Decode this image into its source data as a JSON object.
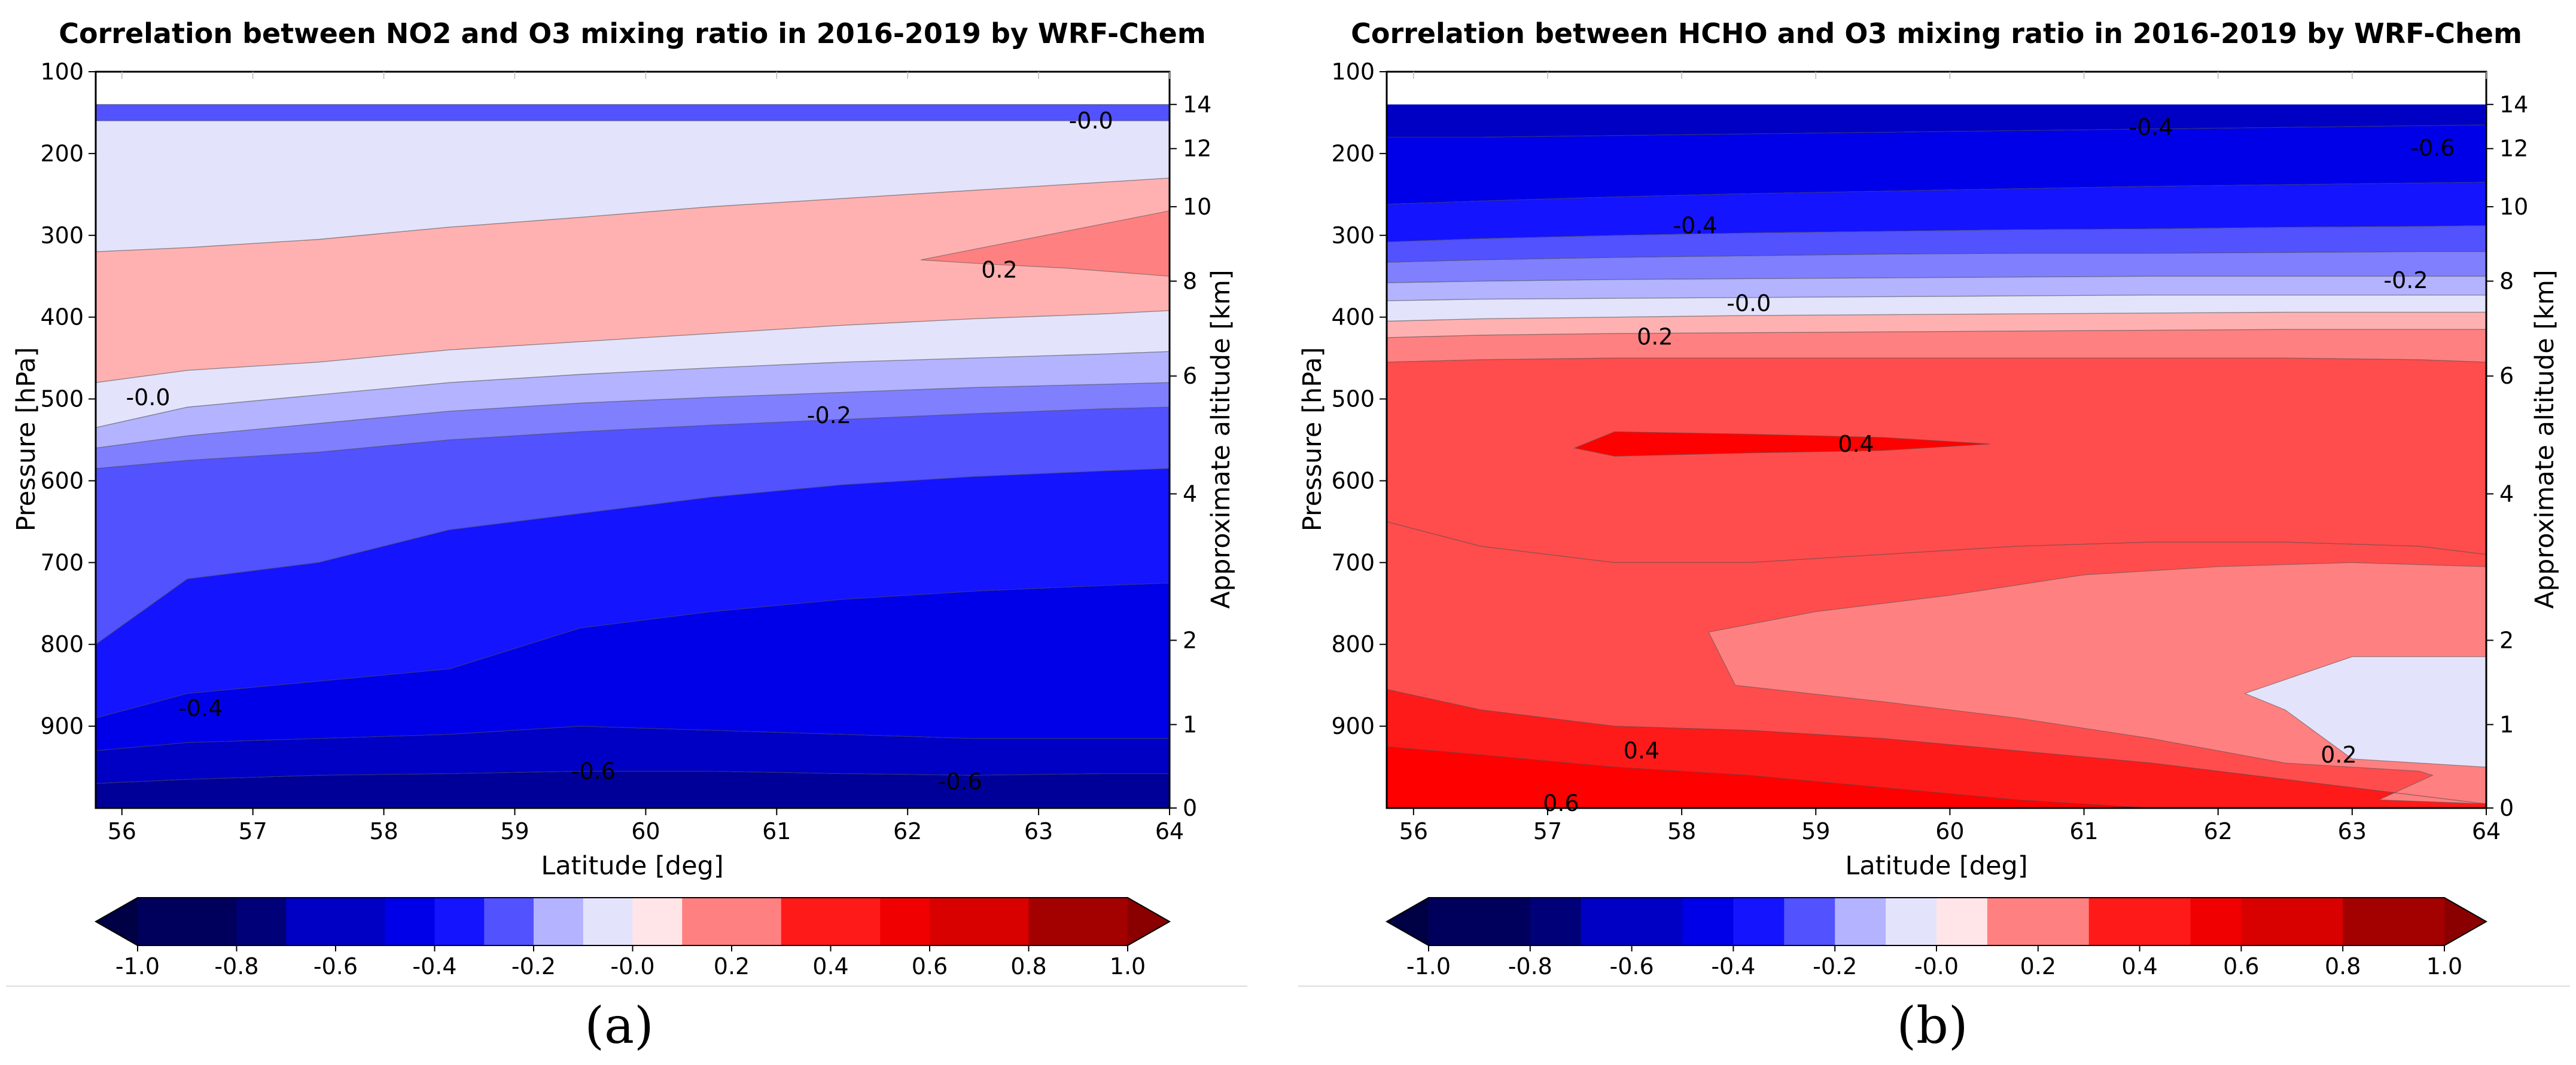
{
  "chart_data": [
    {
      "type": "contour",
      "id": "a",
      "title": "Correlation between NO2 and O3 mixing ratio in 2016-2019 by WRF-Chem",
      "xlabel": "Latitude [deg]",
      "ylabel": "Pressure [hPa]",
      "y2label": "Approximate altitude [km]",
      "xlim": [
        55.8,
        64
      ],
      "ylim": [
        1000,
        100
      ],
      "xticks": [
        56,
        57,
        58,
        59,
        60,
        61,
        62,
        63,
        64
      ],
      "yticks": [
        100,
        200,
        300,
        400,
        500,
        600,
        700,
        800,
        900
      ],
      "y2ticks": [
        {
          "label": "14",
          "pressure": 140
        },
        {
          "label": "12",
          "pressure": 194
        },
        {
          "label": "10",
          "pressure": 265
        },
        {
          "label": "8",
          "pressure": 356
        },
        {
          "label": "6",
          "pressure": 472
        },
        {
          "label": "4",
          "pressure": 616
        },
        {
          "label": "2",
          "pressure": 795
        },
        {
          "label": "1",
          "pressure": 898
        },
        {
          "label": "0",
          "pressure": 1000
        }
      ],
      "data_ptop": 140,
      "field": {
        "type": "bands",
        "x": [
          55.8,
          56.5,
          57.5,
          58.5,
          59.5,
          60.5,
          61.5,
          62.5,
          63.5,
          64
        ],
        "boundaries": [
          {
            "level": 0.1,
            "y": [
              320,
              315,
              305,
              290,
              278,
              265,
              255,
              245,
              235,
              230
            ]
          },
          {
            "level": 0.1,
            "y": [
              480,
              465,
              455,
              440,
              430,
              420,
              410,
              402,
              396,
              392
            ]
          },
          {
            "level": 0.0,
            "y": [
              535,
              510,
              495,
              480,
              470,
              462,
              455,
              450,
              445,
              442
            ]
          },
          {
            "level": -0.1,
            "y": [
              560,
              545,
              530,
              515,
              505,
              498,
              492,
              486,
              482,
              480
            ]
          },
          {
            "level": -0.2,
            "y": [
              585,
              575,
              565,
              550,
              540,
              532,
              525,
              518,
              512,
              510
            ]
          },
          {
            "level": -0.3,
            "y": [
              800,
              720,
              700,
              660,
              640,
              620,
              605,
              595,
              588,
              585
            ]
          },
          {
            "level": -0.4,
            "y": [
              890,
              860,
              845,
              830,
              780,
              760,
              745,
              735,
              728,
              725
            ]
          },
          {
            "level": -0.5,
            "y": [
              930,
              920,
              915,
              910,
              900,
              905,
              910,
              915,
              915,
              915
            ]
          },
          {
            "level": -0.6,
            "y": [
              970,
              965,
              960,
              958,
              955,
              955,
              958,
              960,
              958,
              958
            ]
          }
        ],
        "extra_regions": [
          {
            "value": 0.2,
            "x": [
              62.1,
              64,
              64,
              63.2,
              62.6,
              62.1
            ],
            "y": [
              330,
              270,
              350,
              340,
              335,
              330
            ]
          },
          {
            "value": -0.3,
            "x": [
              55.8,
              64,
              64,
              55.8
            ],
            "y": [
              140,
              140,
              160,
              160
            ]
          }
        ]
      },
      "band_values": [
        0.0,
        0.1,
        0.0,
        -0.1,
        -0.2,
        -0.3,
        -0.4,
        -0.5,
        -0.6,
        -0.7
      ],
      "labels": [
        {
          "text": "-0.0",
          "x": 63.4,
          "y": 160
        },
        {
          "text": "0.2",
          "x": 62.7,
          "y": 342
        },
        {
          "text": "-0.0",
          "x": 56.2,
          "y": 498
        },
        {
          "text": "-0.2",
          "x": 61.4,
          "y": 520
        },
        {
          "text": "-0.4",
          "x": 56.6,
          "y": 878
        },
        {
          "text": "-0.6",
          "x": 59.6,
          "y": 955
        },
        {
          "text": "-0.6",
          "x": 62.4,
          "y": 968
        }
      ],
      "colorbar": {
        "ticks": [
          "-1.0",
          "-0.8",
          "-0.6",
          "-0.4",
          "-0.2",
          "-0.0",
          "0.2",
          "0.4",
          "0.6",
          "0.8",
          "1.0"
        ],
        "range": [
          -1.0,
          1.0
        ]
      },
      "panel_label": "(a)"
    },
    {
      "type": "contour",
      "id": "b",
      "title": "Correlation between HCHO and O3 mixing ratio in 2016-2019 by WRF-Chem",
      "xlabel": "Latitude [deg]",
      "ylabel": "Pressure [hPa]",
      "y2label": "Approximate altitude [km]",
      "xlim": [
        55.8,
        64
      ],
      "ylim": [
        1000,
        100
      ],
      "xticks": [
        56,
        57,
        58,
        59,
        60,
        61,
        62,
        63,
        64
      ],
      "yticks": [
        100,
        200,
        300,
        400,
        500,
        600,
        700,
        800,
        900
      ],
      "y2ticks": [
        {
          "label": "14",
          "pressure": 140
        },
        {
          "label": "12",
          "pressure": 194
        },
        {
          "label": "10",
          "pressure": 265
        },
        {
          "label": "8",
          "pressure": 356
        },
        {
          "label": "6",
          "pressure": 472
        },
        {
          "label": "4",
          "pressure": 616
        },
        {
          "label": "2",
          "pressure": 795
        },
        {
          "label": "1",
          "pressure": 898
        },
        {
          "label": "0",
          "pressure": 1000
        }
      ],
      "data_ptop": 140,
      "field": {
        "type": "bands",
        "x": [
          55.8,
          56.5,
          57.5,
          58.5,
          59.5,
          60.5,
          61.5,
          62.5,
          63.5,
          64
        ],
        "boundaries": [
          {
            "level": -0.5,
            "y": [
              180,
              180,
              178,
              176,
              174,
              172,
              170,
              168,
              166,
              165
            ]
          },
          {
            "level": -0.4,
            "y": [
              262,
              258,
              253,
              249,
              246,
              243,
              240,
              238,
              236,
              235
            ]
          },
          {
            "level": -0.3,
            "y": [
              308,
              304,
              300,
              297,
              295,
              293,
              292,
              290,
              289,
              288
            ]
          },
          {
            "level": -0.2,
            "y": [
              333,
              330,
              327,
              325,
              323,
              322,
              322,
              321,
              320,
              320
            ]
          },
          {
            "level": -0.1,
            "y": [
              358,
              356,
              354,
              353,
              352,
              351,
              350,
              350,
              350,
              350
            ]
          },
          {
            "level": 0.0,
            "y": [
              380,
              378,
              377,
              376,
              375,
              374,
              373,
              373,
              373,
              373
            ]
          },
          {
            "level": 0.1,
            "y": [
              405,
              402,
              400,
              398,
              397,
              396,
              395,
              394,
              394,
              394
            ]
          },
          {
            "level": 0.2,
            "y": [
              425,
              422,
              420,
              419,
              418,
              417,
              416,
              415,
              415,
              415
            ]
          },
          {
            "level": 0.3,
            "y": [
              455,
              452,
              450,
              450,
              450,
              450,
              450,
              450,
              452,
              455
            ]
          },
          {
            "level": 0.4,
            "y": [
              650,
              680,
              700,
              700,
              690,
              680,
              675,
              675,
              680,
              690
            ]
          },
          {
            "level": 0.3,
            "y": [
              855,
              880,
              900,
              905,
              915,
              930,
              945,
              965,
              985,
              995
            ]
          },
          {
            "level": 0.4,
            "y": [
              925,
              935,
              950,
              960,
              975,
              990,
              1000,
              1000,
              1000,
              1000
            ]
          }
        ],
        "extra_regions": [
          {
            "value": 0.5,
            "x": [
              57.2,
              57.5,
              58.5,
              59.5,
              60.3,
              59.5,
              58.5,
              57.5,
              57.2
            ],
            "y": [
              560,
              540,
              543,
              547,
              555,
              563,
              566,
              570,
              560
            ]
          },
          {
            "value": 0.2,
            "x": [
              58.2,
              59,
              60,
              61,
              62,
              63,
              64,
              64,
              63.2,
              63.6,
              63.5,
              62.5,
              61.5,
              60.5,
              59.5,
              58.4,
              58.2
            ],
            "y": [
              785,
              760,
              740,
              715,
              705,
              700,
              705,
              995,
              990,
              960,
              955,
              945,
              915,
              890,
              870,
              850,
              785
            ]
          },
          {
            "value": 0.0,
            "x": [
              62.2,
              63,
              64,
              64,
              63,
              62.5,
              62.2
            ],
            "y": [
              860,
              815,
              815,
              950,
              940,
              880,
              860
            ]
          }
        ]
      },
      "band_values": [
        -0.6,
        -0.5,
        -0.4,
        -0.3,
        -0.2,
        -0.1,
        0.0,
        0.1,
        0.2,
        0.3,
        0.3,
        0.4,
        0.5
      ],
      "labels": [
        {
          "text": "-0.4",
          "x": 61.5,
          "y": 168
        },
        {
          "text": "-0.6",
          "x": 63.6,
          "y": 193
        },
        {
          "text": "-0.4",
          "x": 58.1,
          "y": 288
        },
        {
          "text": "-0.2",
          "x": 63.4,
          "y": 355
        },
        {
          "text": "-0.0",
          "x": 58.5,
          "y": 383
        },
        {
          "text": "0.2",
          "x": 57.8,
          "y": 424
        },
        {
          "text": "0.4",
          "x": 59.3,
          "y": 555
        },
        {
          "text": "0.4",
          "x": 57.7,
          "y": 930
        },
        {
          "text": "0.2",
          "x": 62.9,
          "y": 935
        },
        {
          "text": "0.6",
          "x": 57.1,
          "y": 994
        }
      ],
      "colorbar": {
        "ticks": [
          "-1.0",
          "-0.8",
          "-0.6",
          "-0.4",
          "-0.2",
          "-0.0",
          "0.2",
          "0.4",
          "0.6",
          "0.8",
          "1.0"
        ],
        "range": [
          -1.0,
          1.0
        ]
      },
      "panel_label": "(b)"
    }
  ],
  "colors": {
    "-1.0": "#000044",
    "-0.9": "#00005c",
    "-0.8": "#000078",
    "-0.7": "#000099",
    "-0.6": "#0000c4",
    "-0.5": "#0000e8",
    "-0.4": "#1414ff",
    "-0.3": "#5252ff",
    "-0.2": "#8080ff",
    "-0.1": "#b3b3ff",
    "0.0": "#e3e3fb",
    "0.05": "#ffe5e8",
    "0.1": "#ffb1b1",
    "0.2": "#ff8080",
    "0.3": "#ff4d4d",
    "0.4": "#ff1a1a",
    "0.5": "#ff0000",
    "0.6": "#f00000",
    "0.7": "#d90000",
    "0.8": "#c00000",
    "0.9": "#a30000",
    "1.0": "#8a0000"
  }
}
